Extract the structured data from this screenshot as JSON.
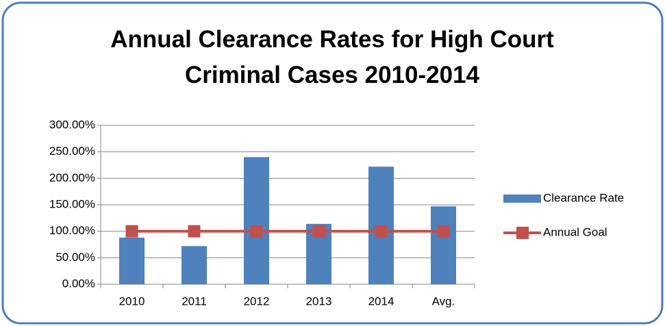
{
  "chart_data": {
    "type": "bar_line",
    "title": "Annual Clearance Rates for High Court Criminal Cases 2010-2014",
    "categories": [
      "2010",
      "2011",
      "2012",
      "2013",
      "2014",
      "Avg."
    ],
    "series": [
      {
        "name": "Clearance Rate",
        "type": "bar",
        "color": "#4f81bd",
        "values": [
          88,
          72,
          240,
          114,
          222,
          147
        ]
      },
      {
        "name": "Annual Goal",
        "type": "line",
        "color": "#c0504d",
        "values": [
          100,
          100,
          100,
          100,
          100,
          100
        ]
      }
    ],
    "ylim": [
      0,
      300
    ],
    "yticks": [
      {
        "value": 0,
        "label": "0.00%"
      },
      {
        "value": 50,
        "label": "50.00%"
      },
      {
        "value": 100,
        "label": "100.00%"
      },
      {
        "value": 150,
        "label": "150.00%"
      },
      {
        "value": 200,
        "label": "200.00%"
      },
      {
        "value": 250,
        "label": "250.00%"
      },
      {
        "value": 300,
        "label": "300.00%"
      }
    ],
    "grid": true,
    "legend": "right"
  }
}
